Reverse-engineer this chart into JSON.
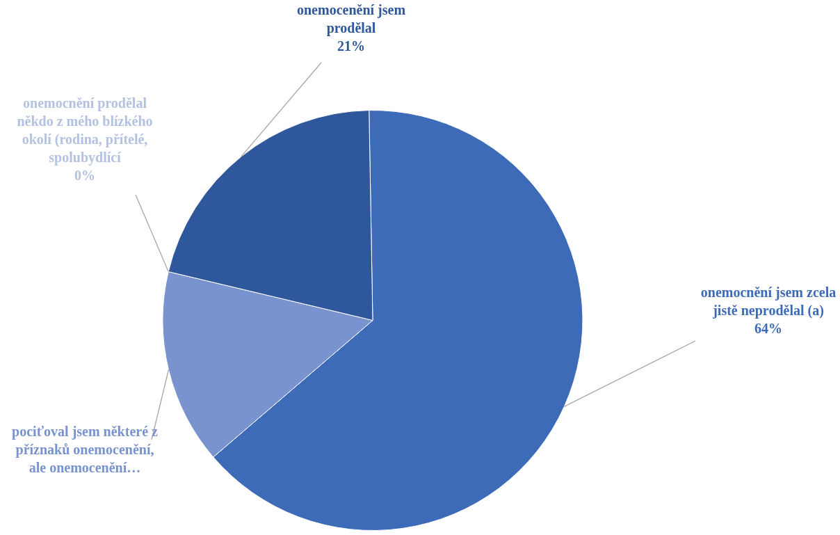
{
  "chart_data": {
    "type": "pie",
    "categories": [
      "onemocnění jsem zcela jistě neprodělal (a)",
      "pociťoval jsem některé z příznaků onemocenění, ale onemocenění…",
      "onemocnění prodělal někdo z mého blízkého okolí (rodina, přítelé, spolubydlící",
      "onemocenění jsem prodělal"
    ],
    "values": [
      64,
      15,
      0,
      21
    ],
    "colors": [
      "#3e6bb8",
      "#7893ce",
      "#b4c2e2",
      "#2f579c"
    ],
    "value_labels": [
      "64%",
      null,
      "0%",
      "21%"
    ],
    "legend": false
  }
}
